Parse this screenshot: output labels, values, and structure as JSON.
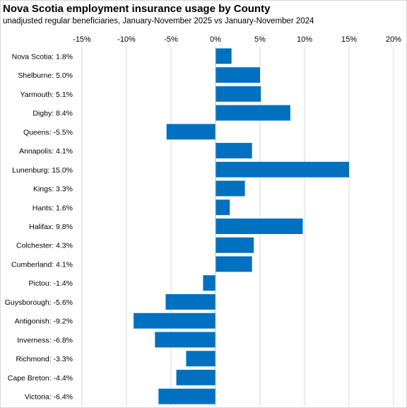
{
  "chart_data": {
    "type": "bar",
    "orientation": "horizontal",
    "title": "Nova Scotia employment insurance usage by County",
    "subtitle": "unadjusted regular beneficiaries,  January-November  2025 vs January-November  2024",
    "categories": [
      "Nova Scotia",
      "Shelburne",
      "Yarmouth",
      "Digby",
      "Queens",
      "Annapolis",
      "Lunenburg",
      "Kings",
      "Hants",
      "Halifax",
      "Colchester",
      "Cumberland",
      "Pictou",
      "Guysborough",
      "Antigonish",
      "Inverness",
      "Richmond",
      "Cape Breton",
      "Victoria"
    ],
    "category_labels": [
      "Nova Scotia:  1.8%",
      "Shelburne:  5.0%",
      "Yarmouth:  5.1%",
      "Digby:  8.4%",
      "Queens:  -5.5%",
      "Annapolis:  4.1%",
      "Lunenburg:  15.0%",
      "Kings:  3.3%",
      "Hants:  1.6%",
      "Halifax:  9.8%",
      "Colchester:  4.3%",
      "Cumberland:  4.1%",
      "Pictou:  -1.4%",
      "Guysborough:  -5.6%",
      "Antigonish:  -9.2%",
      "Inverness:  -6.8%",
      "Richmond:  -3.3%",
      "Cape Breton:  -4.4%",
      "Victoria:  -6.4%"
    ],
    "values": [
      1.8,
      5.0,
      5.1,
      8.4,
      -5.5,
      4.1,
      15.0,
      3.3,
      1.6,
      9.8,
      4.3,
      4.1,
      -1.4,
      -5.6,
      -9.2,
      -6.8,
      -3.3,
      -4.4,
      -6.4
    ],
    "xlim": [
      -15,
      20
    ],
    "xticks": [
      -15,
      -10,
      -5,
      0,
      5,
      10,
      15,
      20
    ],
    "xtick_labels": [
      "-15%",
      "-10%",
      "-5%",
      "0%",
      "5%",
      "10%",
      "15%",
      "20%"
    ],
    "xaxis_position": "top",
    "grid": "vertical",
    "legend": "none",
    "bar_color": "#0070c0",
    "grid_color": "#d9d9d9",
    "axis_color": "#bfbfbf"
  }
}
